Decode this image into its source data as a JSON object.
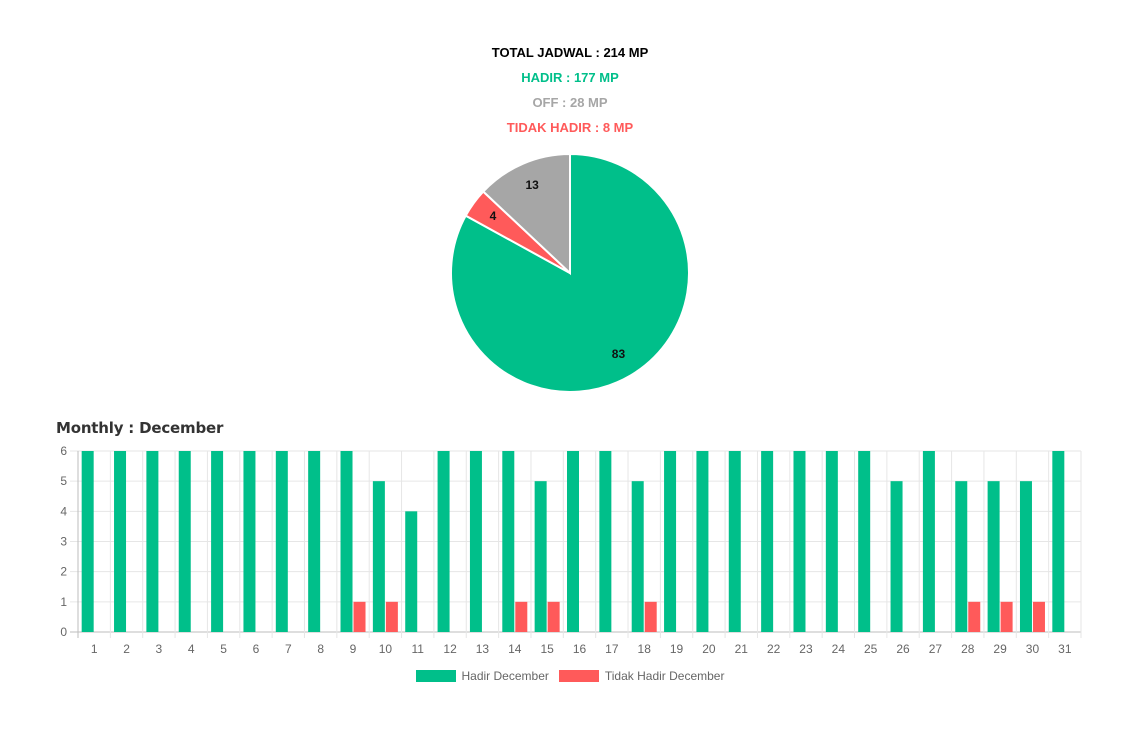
{
  "summary": {
    "total": "TOTAL JADWAL : 214 MP",
    "hadir": "HADIR : 177 MP",
    "off": "OFF : 28 MP",
    "tidak_hadir": "TIDAK HADIR : 8 MP"
  },
  "colors": {
    "total": "#000000",
    "hadir": "#00bf8a",
    "off": "#a6a6a6",
    "tidak_hadir": "#ff5a5a"
  },
  "monthly_title": "Monthly : December",
  "legend": {
    "hadir": "Hadir December",
    "tidak_hadir": "Tidak Hadir December"
  },
  "chart_data": [
    {
      "type": "pie",
      "slices": [
        {
          "value": 83,
          "label": "83",
          "color": "#00bf8a"
        },
        {
          "value": 4,
          "label": "4",
          "color": "#ff5a5a"
        },
        {
          "value": 13,
          "label": "13",
          "color": "#a6a6a6"
        }
      ]
    },
    {
      "type": "bar",
      "title": "Monthly : December",
      "categories": [
        "1",
        "2",
        "3",
        "4",
        "5",
        "6",
        "7",
        "8",
        "9",
        "10",
        "11",
        "12",
        "13",
        "14",
        "15",
        "16",
        "17",
        "18",
        "19",
        "20",
        "21",
        "22",
        "23",
        "24",
        "25",
        "26",
        "27",
        "28",
        "29",
        "30",
        "31"
      ],
      "series": [
        {
          "name": "Hadir December",
          "color": "#00bf8a",
          "values": [
            6,
            6,
            6,
            6,
            6,
            6,
            6,
            6,
            6,
            5,
            4,
            6,
            6,
            6,
            5,
            6,
            6,
            5,
            6,
            6,
            6,
            6,
            6,
            6,
            6,
            5,
            6,
            5,
            5,
            5,
            6
          ]
        },
        {
          "name": "Tidak Hadir December",
          "color": "#ff5a5a",
          "values": [
            0,
            0,
            0,
            0,
            0,
            0,
            0,
            0,
            1,
            1,
            0,
            0,
            0,
            1,
            1,
            0,
            0,
            1,
            0,
            0,
            0,
            0,
            0,
            0,
            0,
            0,
            0,
            1,
            1,
            1,
            0
          ]
        }
      ],
      "yticks": [
        "0",
        "1",
        "2",
        "3",
        "4",
        "5",
        "6"
      ],
      "ylim": [
        0,
        6
      ],
      "grid": true,
      "legend": "bottom"
    }
  ]
}
